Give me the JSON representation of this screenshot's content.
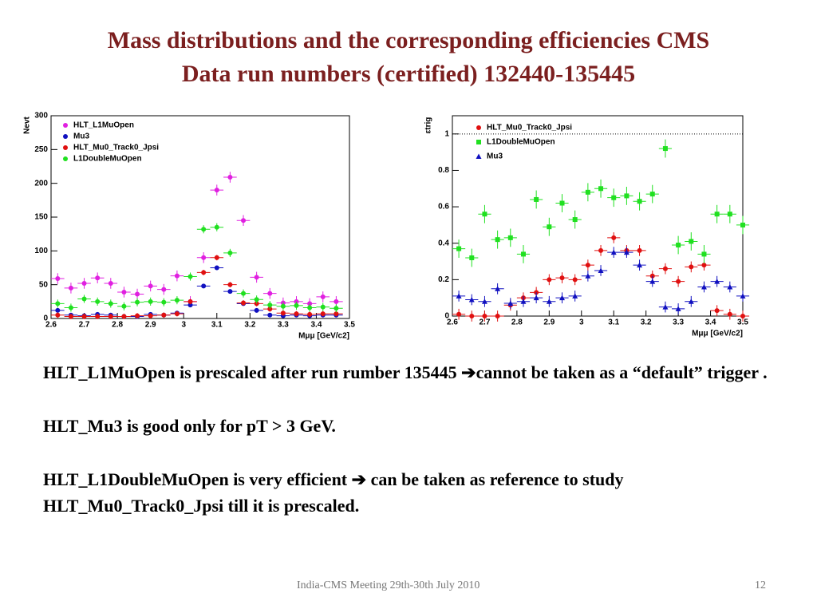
{
  "slide": {
    "title": [
      "Mass distributions and the corresponding efficiencies CMS",
      "Data run numbers (certified) 132440-135445"
    ],
    "paragraphs": [
      "HLT_L1MuOpen is prescaled after run rumber 135445  ➔cannot be taken as a  “default” trigger .",
      "HLT_Mu3 is good only for pT > 3 GeV.",
      "HLT_L1DoubleMuOpen is very efficient ➔ can be taken as reference to study  HLT_Mu0_Track0_Jpsi till  it is prescaled."
    ],
    "footer": "India-CMS Meeting 29th-30th July 2010",
    "page": "12"
  },
  "chart_data": [
    {
      "type": "scatter",
      "xlabel": "Mμμ [GeV/c2]",
      "ylabel": "Nevt",
      "x": [
        2.62,
        2.66,
        2.7,
        2.74,
        2.78,
        2.82,
        2.86,
        2.9,
        2.94,
        2.98,
        3.02,
        3.06,
        3.1,
        3.14,
        3.18,
        3.22,
        3.26,
        3.3,
        3.34,
        3.38,
        3.42,
        3.46
      ],
      "xerr": 0.02,
      "series": [
        {
          "name": "HLT_L1MuOpen",
          "color": "#e020e0",
          "marker": "circle",
          "yerr": 8,
          "values": [
            59,
            45,
            52,
            60,
            52,
            39,
            36,
            48,
            43,
            63,
            25,
            90,
            190,
            209,
            145,
            61,
            37,
            23,
            25,
            22,
            32,
            25
          ]
        },
        {
          "name": "Mu3",
          "color": "#1010c0",
          "marker": "circle",
          "yerr": 3,
          "values": [
            12,
            5,
            4,
            6,
            5,
            3,
            3,
            6,
            5,
            8,
            20,
            48,
            75,
            40,
            22,
            12,
            5,
            4,
            5,
            4,
            5,
            5
          ]
        },
        {
          "name": "HLT_Mu0_Track0_Jpsi",
          "color": "#e01010",
          "marker": "circle",
          "yerr": 4,
          "values": [
            5,
            3,
            3,
            3,
            3,
            3,
            4,
            4,
            5,
            7,
            25,
            68,
            90,
            50,
            23,
            22,
            14,
            8,
            7,
            6,
            7,
            7
          ]
        },
        {
          "name": "L1DoubleMuOpen",
          "color": "#20e020",
          "marker": "circle",
          "yerr": 6,
          "values": [
            22,
            16,
            29,
            25,
            22,
            18,
            24,
            25,
            24,
            27,
            62,
            132,
            135,
            97,
            37,
            28,
            20,
            18,
            19,
            16,
            17,
            15
          ]
        }
      ],
      "xlim": [
        2.6,
        3.5
      ],
      "xticks": [
        2.6,
        2.7,
        2.8,
        2.9,
        3,
        3.1,
        3.2,
        3.3,
        3.4,
        3.5
      ],
      "ylim": [
        0,
        300
      ],
      "yticks": [
        0,
        50,
        100,
        150,
        200,
        250,
        300
      ],
      "grid": false
    },
    {
      "type": "scatter",
      "xlabel": "Mμμ [GeV/c2]",
      "ylabel": "εtrig",
      "x": [
        2.62,
        2.66,
        2.7,
        2.74,
        2.78,
        2.82,
        2.86,
        2.9,
        2.94,
        2.98,
        3.02,
        3.06,
        3.1,
        3.14,
        3.18,
        3.22,
        3.26,
        3.3,
        3.34,
        3.38,
        3.42,
        3.46,
        3.5
      ],
      "xerr": 0.02,
      "series": [
        {
          "name": "HLT_Mu0_Track0_Jpsi",
          "color": "#e01010",
          "marker": "circle",
          "yerr": 0.03,
          "values": [
            0.01,
            0,
            0,
            0,
            0.06,
            0.1,
            0.13,
            0.2,
            0.21,
            0.2,
            0.28,
            0.36,
            0.43,
            0.36,
            0.36,
            0.22,
            0.26,
            0.19,
            0.27,
            0.28,
            0.03,
            0.01,
            0
          ]
        },
        {
          "name": "L1DoubleMuOpen",
          "color": "#20e020",
          "marker": "square",
          "yerr": 0.05,
          "values": [
            0.37,
            0.32,
            0.56,
            0.42,
            0.43,
            0.34,
            0.64,
            0.49,
            0.62,
            0.53,
            0.68,
            0.7,
            0.65,
            0.66,
            0.63,
            0.67,
            0.92,
            0.39,
            0.41,
            0.34,
            0.56,
            0.56,
            0.5
          ]
        },
        {
          "name": "Mu3",
          "color": "#1010c0",
          "marker": "triangle",
          "yerr": 0.03,
          "values": [
            0.11,
            0.09,
            0.08,
            0.15,
            0.07,
            0.08,
            0.1,
            0.08,
            0.1,
            0.11,
            0.22,
            0.25,
            0.35,
            0.35,
            0.28,
            0.19,
            0.05,
            0.04,
            0.08,
            0.16,
            0.19,
            0.16,
            0.11
          ]
        }
      ],
      "xlim": [
        2.6,
        3.5
      ],
      "xticks": [
        2.6,
        2.7,
        2.8,
        2.9,
        3,
        3.1,
        3.2,
        3.3,
        3.4,
        3.5
      ],
      "ylim": [
        0,
        1.1
      ],
      "yticks": [
        0,
        0.2,
        0.4,
        0.6,
        0.8,
        1
      ],
      "grid": false
    }
  ]
}
